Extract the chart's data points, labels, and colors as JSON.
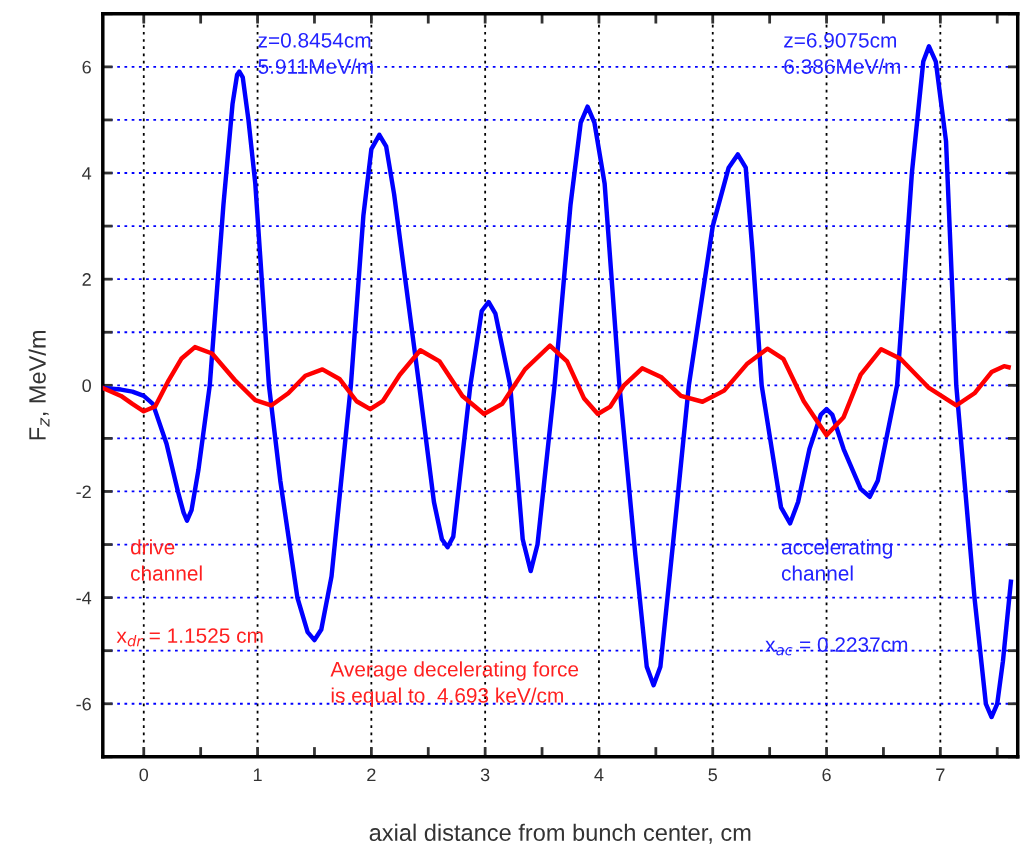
{
  "chart_data": {
    "type": "line",
    "xlabel": "axial distance from bunch center, cm",
    "ylabel": "F$_{z}$, MeV/m",
    "xlim": [
      -0.36,
      7.68
    ],
    "ylim": [
      -7,
      7
    ],
    "xticks": [
      0,
      {
        "value": 0.5,
        "label": null
      },
      1,
      {
        "value": 1.5,
        "label": null
      },
      2,
      {
        "value": 2.5,
        "label": null
      },
      3,
      {
        "value": 3.5,
        "label": null
      },
      4,
      {
        "value": 4.5,
        "label": null
      },
      5,
      {
        "value": 5.5,
        "label": null
      },
      6,
      {
        "value": 6.5,
        "label": null
      },
      7,
      {
        "value": 7.5,
        "label": null
      }
    ],
    "yticks": [
      {
        "value": -7,
        "label": null
      },
      -6,
      {
        "value": -5,
        "label": null
      },
      -4,
      {
        "value": -3,
        "label": null
      },
      -2,
      {
        "value": -1,
        "label": null
      },
      0,
      {
        "value": 1,
        "label": null
      },
      2,
      {
        "value": 3,
        "label": null
      },
      4,
      {
        "value": 5,
        "label": null
      },
      6,
      {
        "value": 7,
        "label": null
      }
    ],
    "grid": true,
    "marker": "none",
    "line_style": "solid",
    "series": [
      {
        "color": "#0000ff",
        "x": [
          -0.36,
          -0.2,
          -0.1,
          0.0,
          0.08,
          0.2,
          0.3,
          0.35,
          0.38,
          0.42,
          0.48,
          0.58,
          0.7,
          0.78,
          0.82,
          0.84,
          0.87,
          0.92,
          0.98,
          1.1,
          1.2,
          1.35,
          1.44,
          1.5,
          1.56,
          1.65,
          1.82,
          1.93,
          2.0,
          2.07,
          2.13,
          2.2,
          2.42,
          2.55,
          2.62,
          2.67,
          2.72,
          2.87,
          2.97,
          3.03,
          3.09,
          3.22,
          3.33,
          3.4,
          3.46,
          3.61,
          3.75,
          3.84,
          3.9,
          3.96,
          4.05,
          4.18,
          4.32,
          4.42,
          4.48,
          4.54,
          4.65,
          4.79,
          5.0,
          5.14,
          5.22,
          5.29,
          5.35,
          5.43,
          5.6,
          5.68,
          5.75,
          5.85,
          5.95,
          6.0,
          6.05,
          6.15,
          6.3,
          6.38,
          6.45,
          6.62,
          6.75,
          6.85,
          6.9,
          6.96,
          7.05,
          7.14,
          7.3,
          7.4,
          7.45,
          7.5,
          7.55,
          7.62
        ],
        "values": [
          -0.05,
          -0.08,
          -0.12,
          -0.2,
          -0.35,
          -1.1,
          -2.0,
          -2.4,
          -2.55,
          -2.35,
          -1.6,
          0,
          3.4,
          5.3,
          5.85,
          5.911,
          5.8,
          5.0,
          3.8,
          0,
          -1.8,
          -4.0,
          -4.65,
          -4.8,
          -4.6,
          -3.6,
          0,
          3.2,
          4.45,
          4.72,
          4.5,
          3.6,
          0,
          -2.2,
          -2.9,
          -3.05,
          -2.85,
          0,
          1.4,
          1.57,
          1.35,
          0,
          -2.9,
          -3.5,
          -3.0,
          0,
          3.4,
          4.95,
          5.25,
          4.95,
          3.8,
          0,
          -3.2,
          -5.3,
          -5.65,
          -5.3,
          -3.0,
          0,
          3.0,
          4.1,
          4.35,
          4.1,
          2.5,
          0,
          -2.3,
          -2.6,
          -2.2,
          -1.2,
          -0.55,
          -0.45,
          -0.55,
          -1.2,
          -1.95,
          -2.1,
          -1.8,
          0,
          4.0,
          6.1,
          6.386,
          6.1,
          4.6,
          0,
          -4.0,
          -6.0,
          -6.25,
          -6.0,
          -5.2,
          -3.7
        ]
      },
      {
        "color": "#ff0000",
        "x": [
          -0.36,
          -0.2,
          -0.1,
          0.0,
          0.1,
          0.22,
          0.33,
          0.45,
          0.6,
          0.8,
          0.98,
          1.12,
          1.27,
          1.42,
          1.57,
          1.72,
          1.87,
          1.99,
          2.1,
          2.25,
          2.43,
          2.6,
          2.8,
          2.99,
          3.15,
          3.35,
          3.57,
          3.72,
          3.87,
          3.99,
          4.1,
          4.22,
          4.38,
          4.55,
          4.72,
          4.91,
          5.1,
          5.3,
          5.48,
          5.62,
          5.8,
          6.0,
          6.15,
          6.3,
          6.48,
          6.65,
          6.9,
          7.14,
          7.3,
          7.45,
          7.56,
          7.6
        ],
        "values": [
          -0.05,
          -0.2,
          -0.35,
          -0.49,
          -0.4,
          0.1,
          0.5,
          0.72,
          0.6,
          0.1,
          -0.28,
          -0.38,
          -0.15,
          0.18,
          0.3,
          0.12,
          -0.3,
          -0.45,
          -0.3,
          0.2,
          0.66,
          0.45,
          -0.2,
          -0.54,
          -0.35,
          0.3,
          0.75,
          0.45,
          -0.25,
          -0.54,
          -0.4,
          0.0,
          0.32,
          0.15,
          -0.2,
          -0.31,
          -0.1,
          0.4,
          0.69,
          0.5,
          -0.3,
          -0.94,
          -0.6,
          0.2,
          0.68,
          0.5,
          -0.05,
          -0.38,
          -0.15,
          0.25,
          0.36,
          0.34
        ]
      }
    ],
    "annotations": [
      "z=0.8454cm\n5.911MeV/m",
      "z=6.9075cm\n6.386MeV/m",
      "drive\nchannel",
      "x$_{dr}$ = 1.1525 cm",
      "Average decelerating force\nis equal to  4.693 keV/cm",
      "accelerating\nchannel",
      "x$_{ac}$ = 0.2237cm"
    ]
  }
}
